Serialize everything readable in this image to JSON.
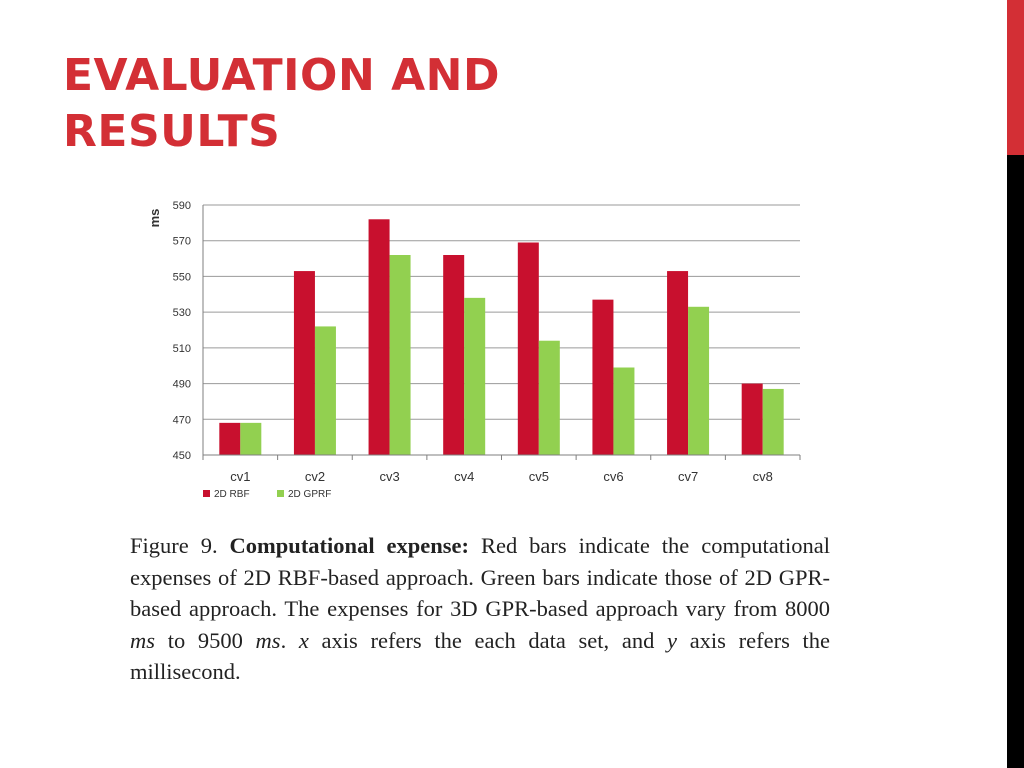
{
  "slide": {
    "title_line1": "EVALUATION AND",
    "title_line2": "RESULTS"
  },
  "colors": {
    "accent": "#d32f35",
    "series_red": "#c8102e",
    "series_green": "#92d050",
    "side_bar_black": "#000000"
  },
  "chart_data": {
    "type": "bar",
    "categories": [
      "cv1",
      "cv2",
      "cv3",
      "cv4",
      "cv5",
      "cv6",
      "cv7",
      "cv8"
    ],
    "series": [
      {
        "name": "2D RBF",
        "color": "#c8102e",
        "values": [
          468,
          553,
          582,
          562,
          569,
          537,
          553,
          490
        ]
      },
      {
        "name": "2D GPRF",
        "color": "#92d050",
        "values": [
          468,
          522,
          562,
          538,
          514,
          499,
          533,
          487
        ]
      }
    ],
    "ylabel": "ms",
    "ylim": [
      450,
      590
    ],
    "yticks": [
      450,
      470,
      490,
      510,
      530,
      550,
      570,
      590
    ],
    "grid": true,
    "legend_position": "bottom-left"
  },
  "caption": {
    "label": "Figure 9. ",
    "bold": "Computational expense:",
    "text_a": " Red bars indicate the computational expenses of 2D RBF-based approach. Green bars indicate those of 2D GPR-based approach. The expenses for 3D GPR-based approach vary from 8000 ",
    "math_ms1": "ms",
    "text_b": " to 9500 ",
    "math_ms2": "ms",
    "text_c": ". ",
    "math_x": "x",
    "text_d": " axis refers the each data set, and ",
    "math_y": "y",
    "text_e": " axis refers the millisecond."
  }
}
